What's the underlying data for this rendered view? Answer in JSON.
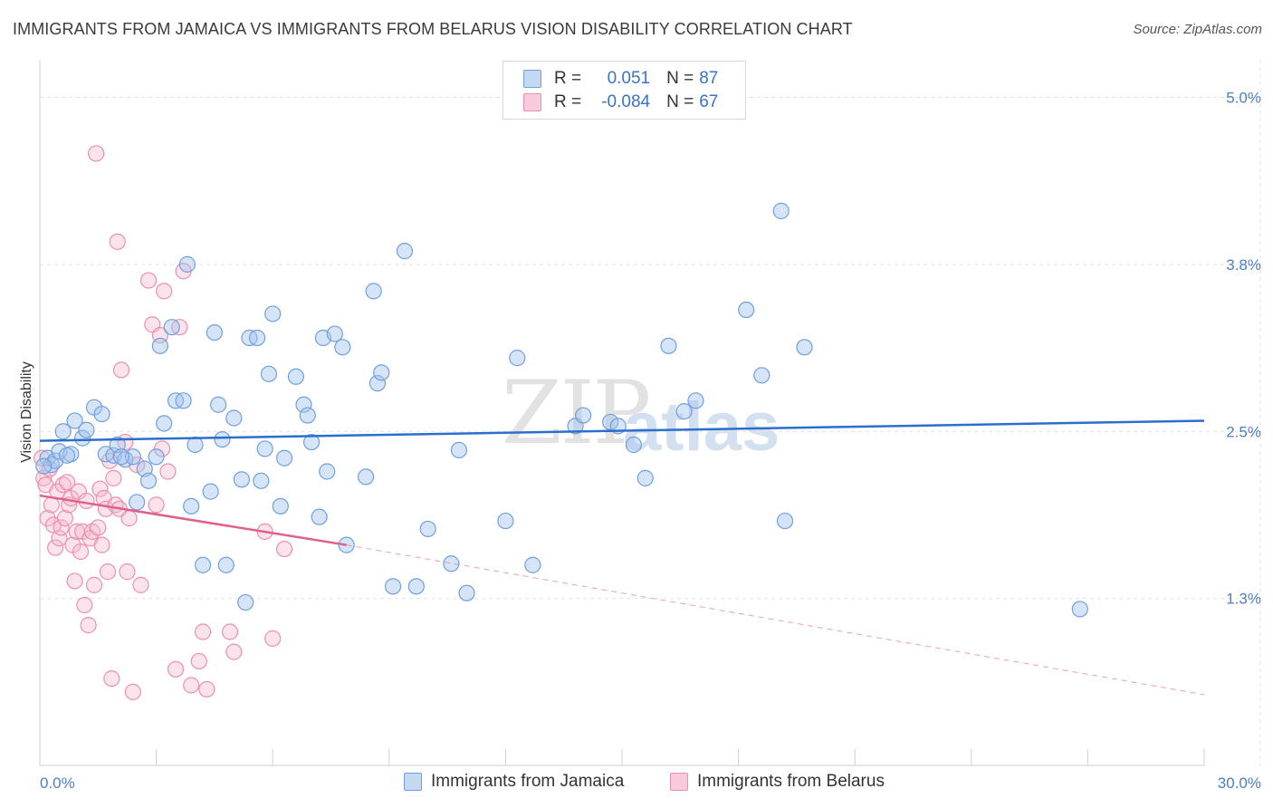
{
  "title": "IMMIGRANTS FROM JAMAICA VS IMMIGRANTS FROM BELARUS VISION DISABILITY CORRELATION CHART",
  "source": "Source: ZipAtlas.com",
  "watermark": {
    "zip": "ZIP",
    "atlas": "atlas"
  },
  "colors": {
    "jamaica": "#6fa0dc",
    "jamaica_line": "#2a6fcc",
    "belarus": "#ec8fae",
    "belarus_line": "#e0608c",
    "grid": "#e3e3e3",
    "tick_text": "#4a7fc4"
  },
  "legend": {
    "rows": [
      {
        "r_label": "R =",
        "r_value": "0.051",
        "n_label": "N =",
        "n_value": "87"
      },
      {
        "r_label": "R =",
        "r_value": "-0.084",
        "n_label": "N =",
        "n_value": "67"
      }
    ]
  },
  "bottom_legend": {
    "jamaica": "Immigrants from Jamaica",
    "belarus": "Immigrants from Belarus"
  },
  "chart_data": {
    "type": "scatter",
    "title": "IMMIGRANTS FROM JAMAICA VS IMMIGRANTS FROM BELARUS VISION DISABILITY CORRELATION CHART",
    "xlabel": "",
    "ylabel": "Vision Disability",
    "xlim": [
      0,
      30
    ],
    "ylim": [
      0,
      5.2
    ],
    "x_tick_labels": {
      "min": "0.0%",
      "max": "30.0%"
    },
    "y_ticks": [
      {
        "value": 1.25,
        "label": "1.3%"
      },
      {
        "value": 2.5,
        "label": "2.5%"
      },
      {
        "value": 3.75,
        "label": "3.8%"
      },
      {
        "value": 5.0,
        "label": "5.0%"
      }
    ],
    "series": [
      {
        "name": "Immigrants from Jamaica",
        "r": 0.051,
        "n": 87,
        "trend": {
          "x": [
            0,
            30
          ],
          "y": [
            2.43,
            2.58
          ],
          "dashed_extension": false
        },
        "points": [
          [
            0.2,
            2.3
          ],
          [
            0.3,
            2.25
          ],
          [
            0.4,
            2.28
          ],
          [
            0.5,
            2.35
          ],
          [
            0.6,
            2.5
          ],
          [
            0.8,
            2.33
          ],
          [
            0.9,
            2.58
          ],
          [
            1.1,
            2.45
          ],
          [
            1.2,
            2.51
          ],
          [
            1.4,
            2.68
          ],
          [
            1.6,
            2.63
          ],
          [
            1.7,
            2.33
          ],
          [
            1.9,
            2.32
          ],
          [
            2.0,
            2.4
          ],
          [
            2.2,
            2.29
          ],
          [
            2.4,
            2.31
          ],
          [
            2.5,
            1.97
          ],
          [
            2.7,
            2.22
          ],
          [
            2.8,
            2.13
          ],
          [
            3.0,
            2.31
          ],
          [
            3.1,
            3.14
          ],
          [
            3.2,
            2.56
          ],
          [
            3.4,
            3.28
          ],
          [
            3.5,
            2.73
          ],
          [
            3.7,
            2.73
          ],
          [
            3.8,
            3.75
          ],
          [
            3.9,
            1.94
          ],
          [
            4.0,
            2.4
          ],
          [
            4.2,
            1.5
          ],
          [
            4.4,
            2.05
          ],
          [
            4.5,
            3.24
          ],
          [
            4.6,
            2.7
          ],
          [
            4.7,
            2.44
          ],
          [
            4.8,
            1.5
          ],
          [
            5.0,
            2.6
          ],
          [
            5.2,
            2.14
          ],
          [
            5.3,
            1.22
          ],
          [
            5.4,
            3.2
          ],
          [
            5.6,
            3.2
          ],
          [
            5.7,
            2.13
          ],
          [
            5.8,
            2.37
          ],
          [
            5.9,
            2.93
          ],
          [
            6.0,
            3.38
          ],
          [
            6.2,
            1.94
          ],
          [
            6.3,
            2.3
          ],
          [
            6.6,
            2.91
          ],
          [
            6.8,
            2.7
          ],
          [
            6.9,
            2.62
          ],
          [
            7.0,
            2.42
          ],
          [
            7.2,
            1.86
          ],
          [
            7.3,
            3.2
          ],
          [
            7.4,
            2.2
          ],
          [
            7.6,
            3.23
          ],
          [
            7.8,
            3.13
          ],
          [
            7.9,
            1.65
          ],
          [
            8.4,
            2.16
          ],
          [
            8.6,
            3.55
          ],
          [
            8.7,
            2.86
          ],
          [
            8.8,
            2.94
          ],
          [
            9.1,
            1.34
          ],
          [
            9.4,
            3.85
          ],
          [
            9.7,
            1.34
          ],
          [
            10.0,
            1.77
          ],
          [
            10.6,
            1.51
          ],
          [
            10.8,
            2.36
          ],
          [
            11.0,
            1.29
          ],
          [
            12.0,
            1.83
          ],
          [
            12.3,
            3.05
          ],
          [
            12.7,
            1.5
          ],
          [
            13.8,
            2.54
          ],
          [
            14.0,
            2.62
          ],
          [
            14.7,
            2.57
          ],
          [
            14.9,
            2.54
          ],
          [
            15.3,
            2.4
          ],
          [
            15.6,
            2.15
          ],
          [
            16.2,
            3.14
          ],
          [
            16.6,
            2.65
          ],
          [
            16.9,
            2.73
          ],
          [
            18.2,
            3.41
          ],
          [
            18.6,
            2.92
          ],
          [
            19.1,
            4.15
          ],
          [
            19.2,
            1.83
          ],
          [
            19.7,
            3.13
          ],
          [
            26.8,
            1.17
          ],
          [
            0.1,
            2.24
          ],
          [
            0.7,
            2.32
          ],
          [
            2.1,
            2.31
          ]
        ]
      },
      {
        "name": "Immigrants from Belarus",
        "r": -0.084,
        "n": 67,
        "trend": {
          "x": [
            0,
            7.9
          ],
          "y": [
            2.02,
            1.65
          ],
          "dashed_extension": {
            "x": [
              7.9,
              30
            ],
            "y": [
              1.65,
              0.53
            ]
          }
        },
        "points": [
          [
            0.05,
            2.3
          ],
          [
            0.1,
            2.15
          ],
          [
            0.15,
            2.1
          ],
          [
            0.2,
            1.85
          ],
          [
            0.25,
            2.22
          ],
          [
            0.3,
            1.95
          ],
          [
            0.35,
            1.8
          ],
          [
            0.4,
            1.63
          ],
          [
            0.45,
            2.05
          ],
          [
            0.5,
            1.7
          ],
          [
            0.55,
            1.78
          ],
          [
            0.6,
            2.1
          ],
          [
            0.65,
            1.85
          ],
          [
            0.7,
            2.12
          ],
          [
            0.75,
            1.95
          ],
          [
            0.8,
            2.0
          ],
          [
            0.85,
            1.65
          ],
          [
            0.9,
            1.38
          ],
          [
            0.95,
            1.75
          ],
          [
            1.0,
            2.05
          ],
          [
            1.05,
            1.6
          ],
          [
            1.1,
            1.75
          ],
          [
            1.15,
            1.2
          ],
          [
            1.2,
            1.98
          ],
          [
            1.25,
            1.05
          ],
          [
            1.3,
            1.7
          ],
          [
            1.35,
            1.75
          ],
          [
            1.4,
            1.35
          ],
          [
            1.45,
            4.58
          ],
          [
            1.5,
            1.78
          ],
          [
            1.55,
            2.07
          ],
          [
            1.6,
            1.65
          ],
          [
            1.65,
            2.0
          ],
          [
            1.7,
            1.92
          ],
          [
            1.75,
            1.45
          ],
          [
            1.8,
            2.28
          ],
          [
            1.85,
            0.65
          ],
          [
            1.9,
            2.15
          ],
          [
            1.95,
            1.95
          ],
          [
            2.0,
            3.92
          ],
          [
            2.05,
            1.92
          ],
          [
            2.1,
            2.96
          ],
          [
            2.2,
            2.42
          ],
          [
            2.25,
            1.45
          ],
          [
            2.3,
            1.85
          ],
          [
            2.4,
            0.55
          ],
          [
            2.5,
            2.25
          ],
          [
            2.6,
            1.35
          ],
          [
            2.8,
            3.63
          ],
          [
            2.9,
            3.3
          ],
          [
            3.0,
            1.95
          ],
          [
            3.1,
            3.22
          ],
          [
            3.15,
            2.37
          ],
          [
            3.2,
            3.55
          ],
          [
            3.3,
            2.2
          ],
          [
            3.5,
            0.72
          ],
          [
            3.6,
            3.28
          ],
          [
            3.7,
            3.7
          ],
          [
            3.9,
            0.6
          ],
          [
            4.1,
            0.78
          ],
          [
            4.2,
            1.0
          ],
          [
            4.3,
            0.57
          ],
          [
            4.9,
            1.0
          ],
          [
            5.0,
            0.85
          ],
          [
            5.8,
            1.75
          ],
          [
            6.0,
            0.95
          ],
          [
            6.3,
            1.62
          ]
        ]
      }
    ],
    "grid": true,
    "legend_position": "top-center"
  }
}
